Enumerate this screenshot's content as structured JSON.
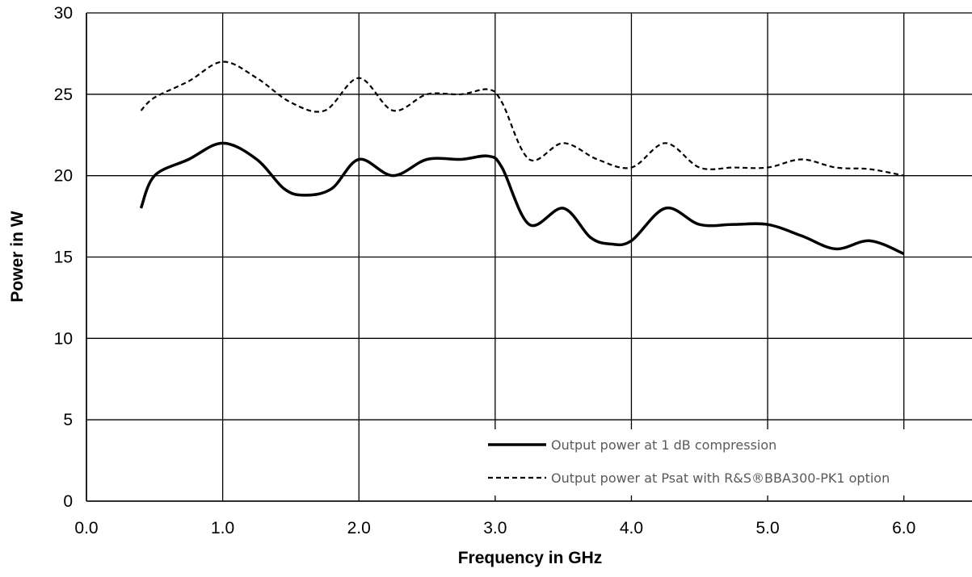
{
  "chart_data": {
    "type": "line",
    "xlabel": "Frequency in GHz",
    "ylabel": "Power in W",
    "xlim": [
      0,
      6.5
    ],
    "ylim": [
      0,
      30
    ],
    "xticks": [
      "0.0",
      "1.0",
      "2.0",
      "3.0",
      "4.0",
      "5.0",
      "6.0"
    ],
    "yticks": [
      "0",
      "5",
      "10",
      "15",
      "20",
      "25",
      "30"
    ],
    "grid": true,
    "legend_position": "bottom-right",
    "series": [
      {
        "name": "Output power at 1 dB compression",
        "style": "solid",
        "color": "#000000",
        "points": [
          [
            0.4,
            18.0
          ],
          [
            0.5,
            20.0
          ],
          [
            0.75,
            21.0
          ],
          [
            1.0,
            22.0
          ],
          [
            1.25,
            21.0
          ],
          [
            1.45,
            19.2
          ],
          [
            1.6,
            18.8
          ],
          [
            1.8,
            19.2
          ],
          [
            2.0,
            21.0
          ],
          [
            2.25,
            20.0
          ],
          [
            2.5,
            21.0
          ],
          [
            2.75,
            21.0
          ],
          [
            2.95,
            21.2
          ],
          [
            3.05,
            20.5
          ],
          [
            3.25,
            17.0
          ],
          [
            3.5,
            18.0
          ],
          [
            3.7,
            16.2
          ],
          [
            3.85,
            15.8
          ],
          [
            4.0,
            16.0
          ],
          [
            4.25,
            18.0
          ],
          [
            4.5,
            17.0
          ],
          [
            4.75,
            17.0
          ],
          [
            5.0,
            17.0
          ],
          [
            5.25,
            16.3
          ],
          [
            5.5,
            15.5
          ],
          [
            5.75,
            16.0
          ],
          [
            6.0,
            15.2
          ]
        ]
      },
      {
        "name": "Output power at Psat with R&S®BBA300-PK1 option",
        "style": "dashed",
        "color": "#000000",
        "points": [
          [
            0.4,
            24.0
          ],
          [
            0.5,
            24.8
          ],
          [
            0.75,
            25.8
          ],
          [
            1.0,
            27.0
          ],
          [
            1.25,
            26.0
          ],
          [
            1.5,
            24.5
          ],
          [
            1.75,
            24.0
          ],
          [
            2.0,
            26.0
          ],
          [
            2.25,
            24.0
          ],
          [
            2.5,
            25.0
          ],
          [
            2.75,
            25.0
          ],
          [
            2.95,
            25.3
          ],
          [
            3.05,
            24.5
          ],
          [
            3.25,
            21.0
          ],
          [
            3.5,
            22.0
          ],
          [
            3.75,
            21.0
          ],
          [
            4.0,
            20.5
          ],
          [
            4.25,
            22.0
          ],
          [
            4.5,
            20.5
          ],
          [
            4.75,
            20.5
          ],
          [
            5.0,
            20.5
          ],
          [
            5.25,
            21.0
          ],
          [
            5.5,
            20.5
          ],
          [
            5.75,
            20.4
          ],
          [
            6.0,
            20.0
          ]
        ]
      }
    ]
  }
}
